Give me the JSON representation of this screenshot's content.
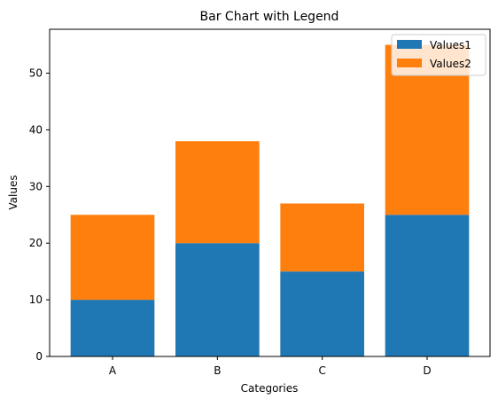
{
  "chart_data": {
    "type": "bar",
    "stacked": true,
    "title": "Bar Chart with Legend",
    "xlabel": "Categories",
    "ylabel": "Values",
    "categories": [
      "A",
      "B",
      "C",
      "D"
    ],
    "series": [
      {
        "name": "Values1",
        "values": [
          10,
          20,
          15,
          25
        ],
        "color": "#1f77b4"
      },
      {
        "name": "Values2",
        "values": [
          15,
          18,
          12,
          30
        ],
        "color": "#ff7f0e"
      }
    ],
    "ylim": [
      0,
      57.75
    ],
    "yticks": [
      0,
      10,
      20,
      30,
      40,
      50
    ],
    "grid": false,
    "legend_position": "top-right"
  }
}
